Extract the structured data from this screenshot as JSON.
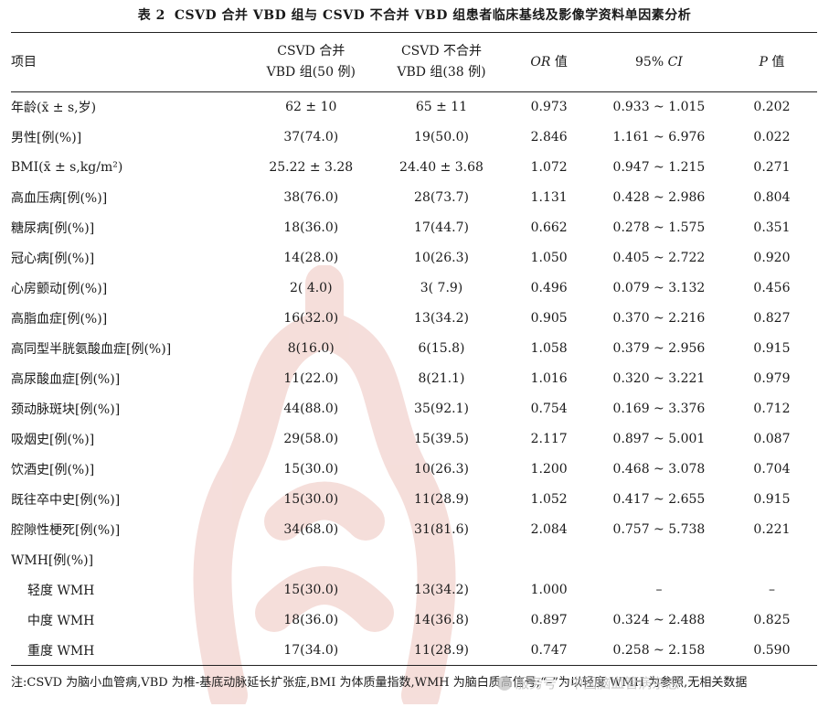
{
  "caption": {
    "label": "表 2",
    "title": "CSVD 合并 VBD 组与 CSVD 不合并 VBD 组患者临床基线及影像学资料单因素分析"
  },
  "header": {
    "col0": "项目",
    "col1_line1": "CSVD 合并",
    "col1_line2": "VBD 组(50 例)",
    "col2_line1": "CSVD 不合并",
    "col2_line2": "VBD 组(38 例)",
    "col3_ital": "OR",
    "col3_rest": " 值",
    "col4_plain": "95% ",
    "col4_ital": "CI",
    "col5_ital": "P",
    "col5_rest": " 值"
  },
  "rows": [
    {
      "item": "年龄(x̄ ± s,岁)",
      "g1": "62 ± 10",
      "g2": "65 ± 11",
      "or": "0.973",
      "ci": "0.933 ~ 1.015",
      "p": "0.202"
    },
    {
      "item": "男性[例(%)]",
      "g1": "37(74.0)",
      "g2": "19(50.0)",
      "or": "2.846",
      "ci": "1.161 ~ 6.976",
      "p": "0.022"
    },
    {
      "item": "BMI(x̄ ± s,kg/m²)",
      "g1": "25.22 ± 3.28",
      "g2": "24.40 ± 3.68",
      "or": "1.072",
      "ci": "0.947 ~ 1.215",
      "p": "0.271"
    },
    {
      "item": "高血压病[例(%)]",
      "g1": "38(76.0)",
      "g2": "28(73.7)",
      "or": "1.131",
      "ci": "0.428 ~ 2.986",
      "p": "0.804"
    },
    {
      "item": "糖尿病[例(%)]",
      "g1": "18(36.0)",
      "g2": "17(44.7)",
      "or": "0.662",
      "ci": "0.278 ~ 1.575",
      "p": "0.351"
    },
    {
      "item": "冠心病[例(%)]",
      "g1": "14(28.0)",
      "g2": "10(26.3)",
      "or": "1.050",
      "ci": "0.405 ~ 2.722",
      "p": "0.920"
    },
    {
      "item": "心房颤动[例(%)]",
      "g1": "2( 4.0)",
      "g2": "3( 7.9)",
      "or": "0.496",
      "ci": "0.079 ~ 3.132",
      "p": "0.456"
    },
    {
      "item": "高脂血症[例(%)]",
      "g1": "16(32.0)",
      "g2": "13(34.2)",
      "or": "0.905",
      "ci": "0.370 ~ 2.216",
      "p": "0.827"
    },
    {
      "item": "高同型半胱氨酸血症[例(%)]",
      "g1": "8(16.0)",
      "g2": "6(15.8)",
      "or": "1.058",
      "ci": "0.379 ~ 2.956",
      "p": "0.915"
    },
    {
      "item": "高尿酸血症[例(%)]",
      "g1": "11(22.0)",
      "g2": "8(21.1)",
      "or": "1.016",
      "ci": "0.320 ~ 3.221",
      "p": "0.979"
    },
    {
      "item": "颈动脉斑块[例(%)]",
      "g1": "44(88.0)",
      "g2": "35(92.1)",
      "or": "0.754",
      "ci": "0.169 ~ 3.376",
      "p": "0.712"
    },
    {
      "item": "吸烟史[例(%)]",
      "g1": "29(58.0)",
      "g2": "15(39.5)",
      "or": "2.117",
      "ci": "0.897 ~ 5.001",
      "p": "0.087"
    },
    {
      "item": "饮酒史[例(%)]",
      "g1": "15(30.0)",
      "g2": "10(26.3)",
      "or": "1.200",
      "ci": "0.468 ~ 3.078",
      "p": "0.704"
    },
    {
      "item": "既往卒中史[例(%)]",
      "g1": "15(30.0)",
      "g2": "11(28.9)",
      "or": "1.052",
      "ci": "0.417 ~ 2.655",
      "p": "0.915"
    },
    {
      "item": "腔隙性梗死[例(%)]",
      "g1": "34(68.0)",
      "g2": "31(81.6)",
      "or": "2.084",
      "ci": "0.757 ~ 5.738",
      "p": "0.221"
    },
    {
      "item": "WMH[例(%)]",
      "g1": "",
      "g2": "",
      "or": "",
      "ci": "",
      "p": ""
    },
    {
      "item": "轻度 WMH",
      "g1": "15(30.0)",
      "g2": "13(34.2)",
      "or": "1.000",
      "ci": "–",
      "p": "–"
    },
    {
      "item": "中度 WMH",
      "g1": "18(36.0)",
      "g2": "14(36.8)",
      "or": "0.897",
      "ci": "0.324 ~ 2.488",
      "p": "0.825"
    },
    {
      "item": "重度 WMH",
      "g1": "17(34.0)",
      "g2": "11(28.9)",
      "or": "0.747",
      "ci": "0.258 ~ 2.158",
      "p": "0.590"
    }
  ],
  "note": "注:CSVD 为脑小血管病,VBD 为椎-基底动脉延长扩张症,BMI 为体质量指数,WMH 为脑白质高信号;“–”为以轻度 WMH 为参照,无相关数据",
  "watermark": {
    "text": "服务号 · 中国脑血管病杂志",
    "color": "#c0392b"
  }
}
